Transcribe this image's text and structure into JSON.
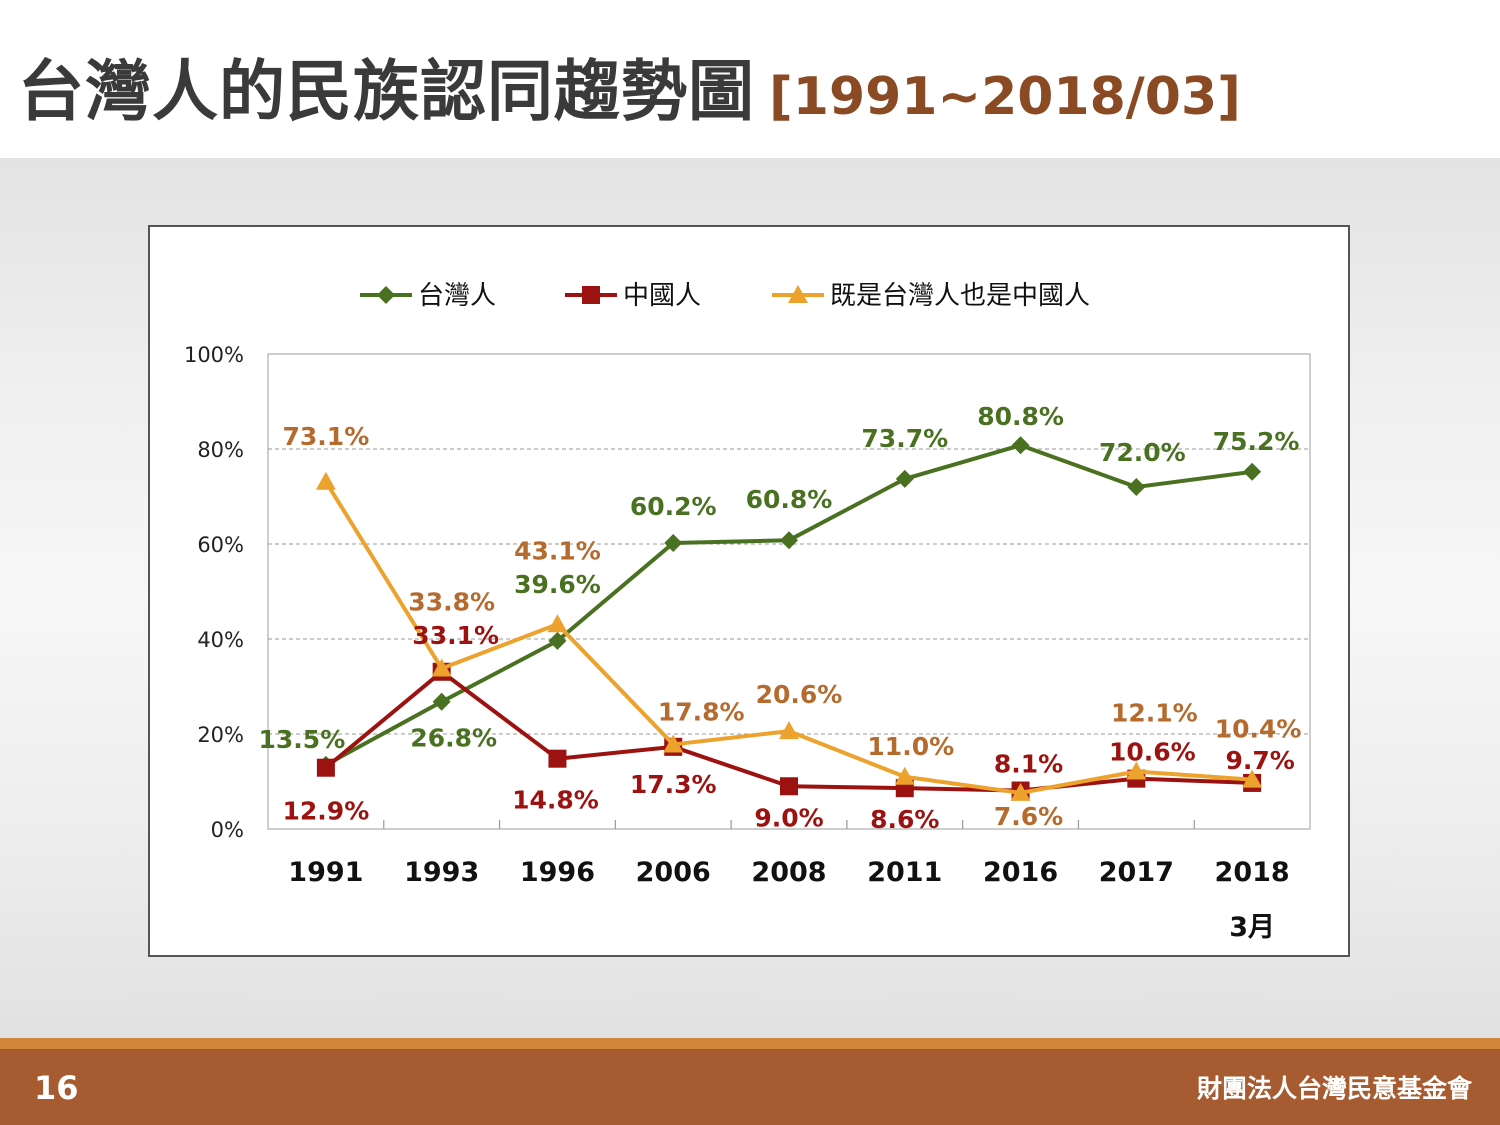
{
  "slide": {
    "title": "台灣人的民族認同趨勢圖",
    "subtitle": "[1991~2018/03]",
    "page_number": "16",
    "organization": "財團法人台灣民意基金會"
  },
  "chart_data": {
    "type": "line",
    "x_labels": [
      [
        "1991"
      ],
      [
        "1993"
      ],
      [
        "1996"
      ],
      [
        "2006"
      ],
      [
        "2008"
      ],
      [
        "2011"
      ],
      [
        "2016"
      ],
      [
        "2017"
      ],
      [
        "2018",
        "3月"
      ]
    ],
    "ylim": [
      0,
      100
    ],
    "yticks": [
      0,
      20,
      40,
      60,
      80,
      100
    ],
    "ytick_labels": [
      "0%",
      "20%",
      "40%",
      "60%",
      "80%",
      "100%"
    ],
    "grid": "horizontal dashed",
    "legend_position": "top",
    "series": [
      {
        "name": "台灣人",
        "color": "#4a7121",
        "marker": "diamond",
        "values": [
          13.5,
          26.8,
          39.6,
          60.2,
          60.8,
          73.7,
          80.8,
          72.0,
          75.2
        ],
        "labels": [
          "13.5%",
          "26.8%",
          "39.6%",
          "60.2%",
          "60.8%",
          "73.7%",
          "80.8%",
          "72.0%",
          "75.2%"
        ]
      },
      {
        "name": "中國人",
        "color": "#9c1210",
        "marker": "square",
        "values": [
          12.9,
          33.1,
          14.8,
          17.3,
          9.0,
          8.6,
          8.1,
          10.6,
          9.7
        ],
        "labels": [
          "12.9%",
          "33.1%",
          "14.8%",
          "17.3%",
          "9.0%",
          "8.6%",
          "8.1%",
          "10.6%",
          "9.7%"
        ]
      },
      {
        "name": "既是台灣人也是中國人",
        "color": "#eca22c",
        "label_color": "#b56a2e",
        "marker": "triangle",
        "values": [
          73.1,
          33.8,
          43.1,
          17.8,
          20.6,
          11.0,
          7.6,
          12.1,
          10.4
        ],
        "labels": [
          "73.1%",
          "33.8%",
          "43.1%",
          "17.8%",
          "20.6%",
          "11.0%",
          "7.6%",
          "12.1%",
          "10.4%"
        ]
      }
    ]
  }
}
